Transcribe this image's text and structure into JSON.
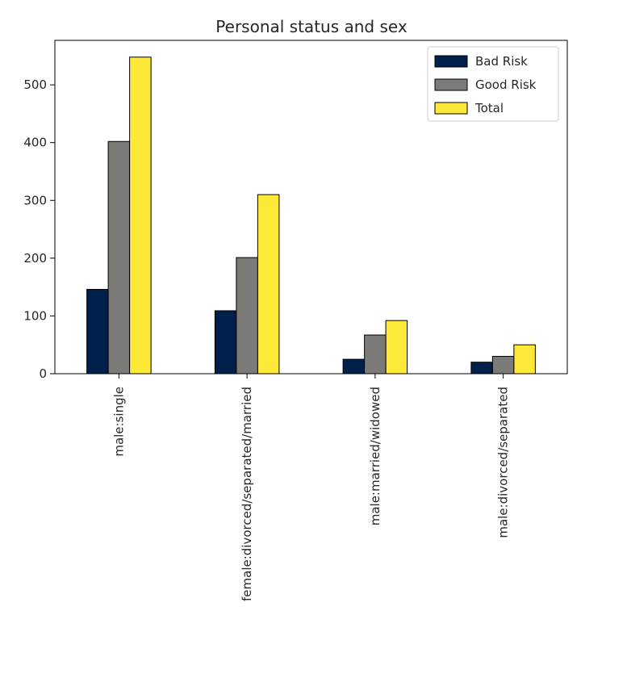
{
  "chart_data": {
    "type": "bar",
    "title": "Personal status and sex",
    "xlabel": "",
    "ylabel": "",
    "categories": [
      "male:single",
      "female:divorced/separated/married",
      "male:married/widowed",
      "male:divorced/separated"
    ],
    "series": [
      {
        "name": "Bad Risk",
        "values": [
          146,
          109,
          25,
          20
        ],
        "color": "#00204c"
      },
      {
        "name": "Good Risk",
        "values": [
          402,
          201,
          67,
          30
        ],
        "color": "#7c7b78"
      },
      {
        "name": "Total",
        "values": [
          548,
          310,
          92,
          50
        ],
        "color": "#fee838"
      }
    ],
    "ylim": [
      0,
      577
    ],
    "yticks": [
      0,
      100,
      200,
      300,
      400,
      500
    ],
    "grid": false,
    "legend": "top-right"
  }
}
